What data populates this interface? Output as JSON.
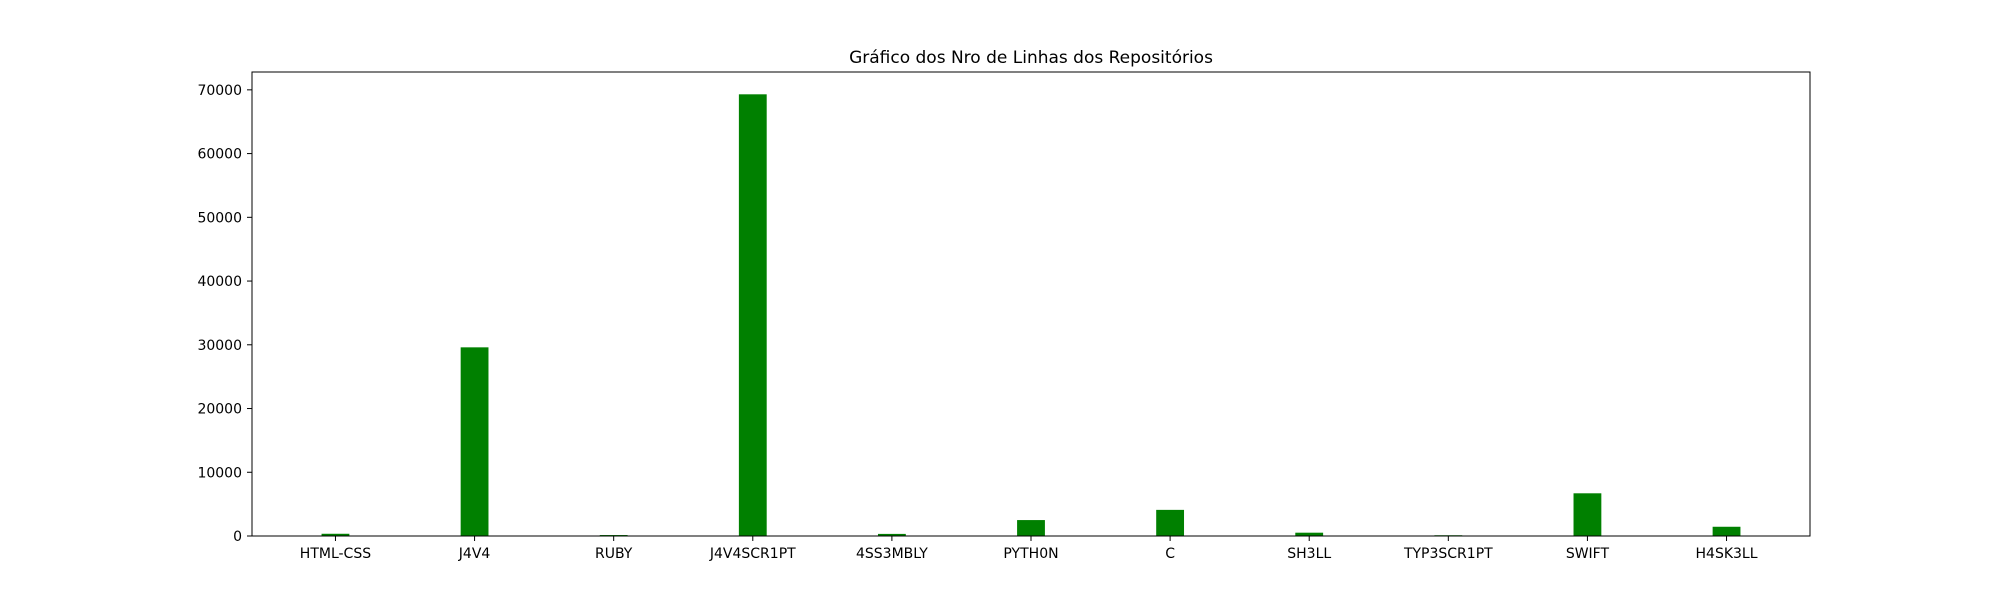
{
  "chart_data": {
    "type": "bar",
    "title": "Gráfico dos Nro de Linhas dos Repositórios",
    "xlabel": "",
    "ylabel": "",
    "categories": [
      "HTML-CSS",
      "J4V4",
      "RUBY",
      "J4V4SCR1PT",
      "4SS3MBLY",
      "PYTH0N",
      "C",
      "SH3LL",
      "TYP3SCR1PT",
      "SWIFT",
      "H4SK3LL"
    ],
    "values": [
      350,
      29600,
      150,
      69300,
      330,
      2500,
      4100,
      520,
      120,
      6700,
      1450
    ],
    "ylim": [
      0,
      72800
    ],
    "yticks": [
      0,
      10000,
      20000,
      30000,
      40000,
      50000,
      60000,
      70000
    ],
    "ytick_labels": [
      "0",
      "10000",
      "20000",
      "30000",
      "40000",
      "50000",
      "60000",
      "70000"
    ],
    "bar_color": "#008000",
    "grid": false,
    "legend": "none"
  }
}
